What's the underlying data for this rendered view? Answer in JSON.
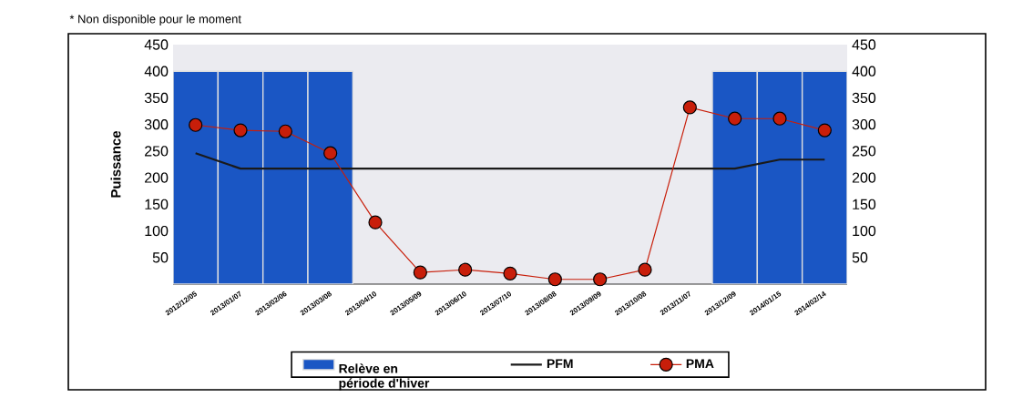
{
  "chart_data": {
    "type": "line",
    "ylabel": "Puissance",
    "annotations": [
      "* Non disponible pour le moment"
    ],
    "categories": [
      "2012/12/05",
      "2013/01/07",
      "2013/02/06",
      "2013/03/08",
      "2013/04/10",
      "2013/05/09",
      "2013/06/10",
      "2013/07/10",
      "2013/08/08",
      "2013/09/09",
      "2013/10/08",
      "2013/11/07",
      "2013/12/09",
      "2014/01/15",
      "2014/02/14"
    ],
    "series": [
      {
        "name": "Relève en période d'hiver",
        "type": "bar",
        "color": "#1a56c4",
        "values": [
          400,
          400,
          400,
          400,
          null,
          null,
          null,
          null,
          null,
          null,
          null,
          null,
          400,
          400,
          400
        ]
      },
      {
        "name": "PFM",
        "color": "#1a1a1a",
        "marker": "none",
        "values": [
          246,
          217,
          217,
          217,
          217,
          217,
          217,
          217,
          217,
          217,
          217,
          217,
          217,
          234,
          234
        ]
      },
      {
        "name": "PMA",
        "color": "#c81e0a",
        "marker": "circle",
        "values": [
          299,
          289,
          287,
          246,
          116,
          22,
          27,
          20,
          9,
          9,
          27,
          332,
          311,
          311,
          289
        ]
      }
    ],
    "ylim": [
      0,
      450
    ],
    "yticks": [
      50,
      100,
      150,
      200,
      250,
      300,
      350,
      400,
      450
    ],
    "y2lim": [
      0,
      450
    ],
    "y2ticks": [
      50,
      100,
      150,
      200,
      250,
      300,
      350,
      400,
      450
    ],
    "legend": "bottom",
    "grid": false
  }
}
